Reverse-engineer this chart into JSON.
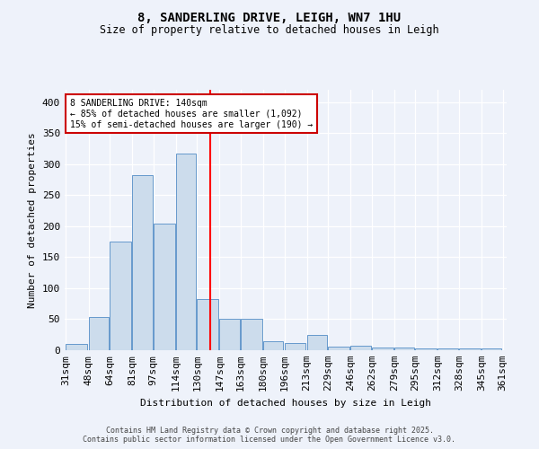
{
  "title": "8, SANDERLING DRIVE, LEIGH, WN7 1HU",
  "subtitle": "Size of property relative to detached houses in Leigh",
  "xlabel": "Distribution of detached houses by size in Leigh",
  "ylabel": "Number of detached properties",
  "bar_color": "#ccdcec",
  "bar_edge_color": "#6699cc",
  "background_color": "#eef2fa",
  "grid_color": "#ffffff",
  "red_line_x": 140,
  "annotation_line1": "8 SANDERLING DRIVE: 140sqm",
  "annotation_line2": "← 85% of detached houses are smaller (1,092)",
  "annotation_line3": "15% of semi-detached houses are larger (190) →",
  "annotation_box_color": "#ffffff",
  "annotation_box_edge": "#cc0000",
  "footer1": "Contains HM Land Registry data © Crown copyright and database right 2025.",
  "footer2": "Contains public sector information licensed under the Open Government Licence v3.0.",
  "bins": [
    31,
    48,
    64,
    81,
    97,
    114,
    130,
    147,
    163,
    180,
    196,
    213,
    229,
    246,
    262,
    279,
    295,
    312,
    328,
    345,
    361
  ],
  "counts": [
    10,
    53,
    175,
    283,
    204,
    317,
    83,
    51,
    51,
    15,
    12,
    25,
    6,
    7,
    5,
    4,
    3,
    3,
    3,
    3
  ],
  "ylim": [
    0,
    420
  ],
  "yticks": [
    0,
    50,
    100,
    150,
    200,
    250,
    300,
    350,
    400
  ]
}
